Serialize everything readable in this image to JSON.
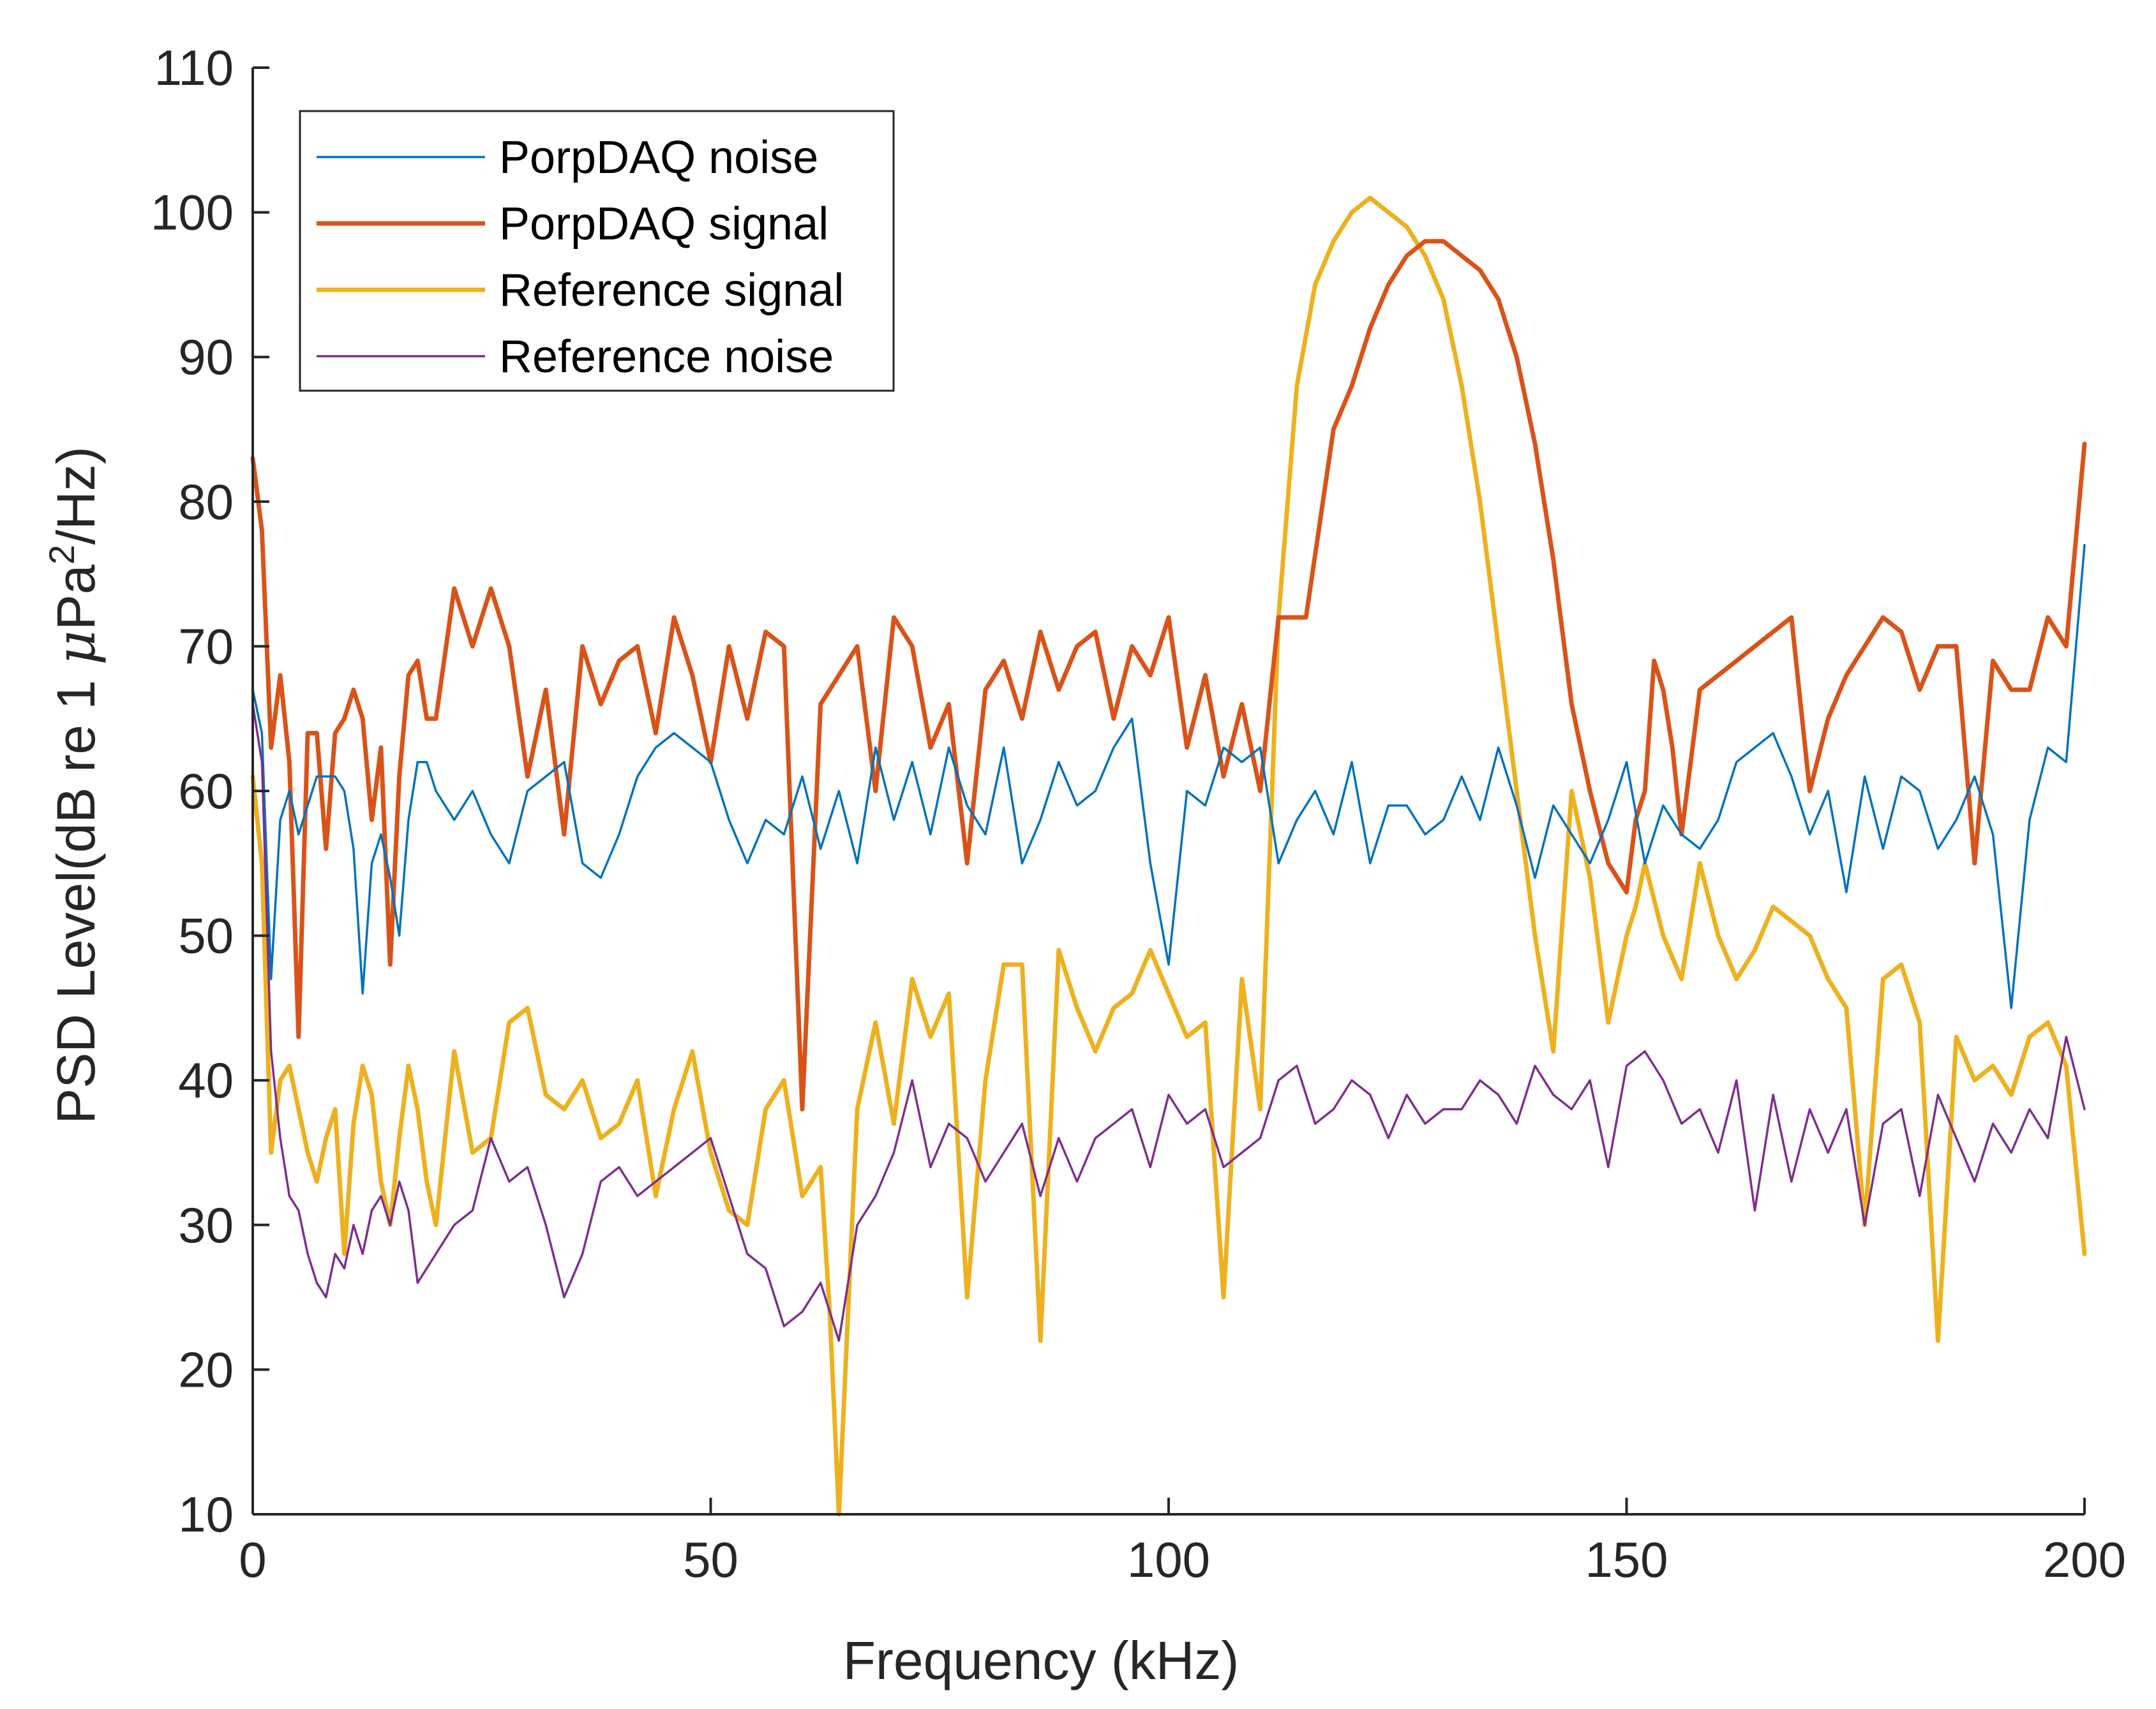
{
  "chart_data": {
    "type": "line",
    "title": "",
    "xlabel": "Frequency (kHz)",
    "ylabel_main": "PSD Level(dB re 1 ",
    "ylabel_mu": "μ",
    "ylabel_pa": "Pa",
    "ylabel_sup": "2",
    "ylabel_end": "/Hz)",
    "xlim": [
      0,
      200
    ],
    "ylim": [
      10,
      110
    ],
    "xticks": [
      0,
      50,
      100,
      150,
      200
    ],
    "xtick_labels": [
      "0",
      "50",
      "100",
      "150",
      "200"
    ],
    "yticks": [
      10,
      20,
      30,
      40,
      50,
      60,
      70,
      80,
      90,
      100,
      110
    ],
    "ytick_labels": [
      "10",
      "20",
      "30",
      "40",
      "50",
      "60",
      "70",
      "80",
      "90",
      "100",
      "110"
    ],
    "grid": false,
    "legend_position": "top-left",
    "series": [
      {
        "name": "PorpDAQ noise",
        "color": "#0072BD",
        "width": "thin",
        "x": [
          0,
          1,
          2,
          3,
          4,
          5,
          6,
          7,
          8,
          9,
          10,
          11,
          12,
          13,
          14,
          15,
          16,
          17,
          18,
          19,
          20,
          22,
          24,
          26,
          28,
          30,
          32,
          34,
          36,
          38,
          40,
          42,
          44,
          46,
          48,
          50,
          52,
          54,
          56,
          58,
          60,
          62,
          64,
          66,
          68,
          70,
          72,
          74,
          76,
          78,
          80,
          82,
          84,
          86,
          88,
          90,
          92,
          94,
          96,
          98,
          100,
          102,
          104,
          106,
          108,
          110,
          112,
          114,
          116,
          118,
          120,
          122,
          124,
          126,
          128,
          130,
          132,
          134,
          136,
          138,
          140,
          142,
          144,
          146,
          148,
          150,
          152,
          154,
          156,
          158,
          160,
          162,
          164,
          166,
          168,
          170,
          172,
          174,
          176,
          178,
          180,
          182,
          184,
          186,
          188,
          190,
          192,
          194,
          196,
          198,
          200
        ],
        "y": [
          67,
          64,
          47,
          58,
          60,
          57,
          59,
          61,
          61,
          61,
          60,
          56,
          46,
          55,
          57,
          54,
          50,
          58,
          62,
          62,
          60,
          58,
          60,
          57,
          55,
          60,
          61,
          62,
          55,
          54,
          57,
          61,
          63,
          64,
          63,
          62,
          58,
          55,
          58,
          57,
          61,
          56,
          60,
          55,
          63,
          58,
          62,
          57,
          63,
          59,
          57,
          63,
          55,
          58,
          62,
          59,
          60,
          63,
          65,
          55,
          48,
          60,
          59,
          63,
          62,
          63,
          55,
          58,
          60,
          57,
          62,
          55,
          59,
          59,
          57,
          58,
          61,
          58,
          63,
          59,
          54,
          59,
          57,
          55,
          58,
          62,
          55,
          59,
          57,
          56,
          58,
          62,
          63,
          64,
          61,
          57,
          60,
          53,
          61,
          56,
          61,
          60,
          56,
          58,
          61,
          57,
          45,
          58,
          63,
          62,
          77
        ]
      },
      {
        "name": "PorpDAQ signal",
        "color": "#D95319",
        "width": "thick",
        "x": [
          0,
          1,
          2,
          3,
          4,
          5,
          6,
          7,
          8,
          9,
          10,
          11,
          12,
          13,
          14,
          15,
          16,
          17,
          18,
          19,
          20,
          22,
          24,
          26,
          28,
          30,
          32,
          34,
          36,
          38,
          40,
          42,
          44,
          46,
          48,
          50,
          52,
          54,
          56,
          58,
          60,
          62,
          64,
          66,
          68,
          70,
          72,
          74,
          76,
          78,
          80,
          82,
          84,
          86,
          88,
          90,
          92,
          94,
          96,
          98,
          100,
          102,
          104,
          106,
          108,
          110,
          112,
          115,
          118,
          120,
          122,
          124,
          126,
          128,
          130,
          132,
          134,
          136,
          138,
          140,
          142,
          144,
          146,
          148,
          150,
          151,
          152,
          153,
          154,
          155,
          156,
          158,
          160,
          162,
          164,
          166,
          168,
          170,
          172,
          174,
          176,
          178,
          180,
          182,
          184,
          186,
          188,
          190,
          192,
          194,
          196,
          198,
          200
        ],
        "y": [
          83,
          78,
          63,
          68,
          62,
          43,
          64,
          64,
          56,
          64,
          65,
          67,
          65,
          58,
          63,
          48,
          61,
          68,
          69,
          65,
          65,
          74,
          70,
          74,
          70,
          61,
          67,
          57,
          70,
          66,
          69,
          70,
          64,
          72,
          68,
          62,
          70,
          65,
          71,
          70,
          38,
          66,
          68,
          70,
          60,
          72,
          70,
          63,
          66,
          55,
          67,
          69,
          65,
          71,
          67,
          70,
          71,
          65,
          70,
          68,
          72,
          63,
          68,
          61,
          66,
          60,
          72,
          72,
          85,
          88,
          92,
          95,
          97,
          98,
          98,
          97,
          96,
          94,
          90,
          84,
          76,
          66,
          60,
          55,
          53,
          58,
          60,
          69,
          67,
          63,
          57,
          67,
          68,
          69,
          70,
          71,
          72,
          60,
          65,
          68,
          70,
          72,
          71,
          67,
          70,
          70,
          55,
          69,
          67,
          67,
          72,
          70,
          84
        ]
      },
      {
        "name": "Reference signal",
        "color": "#EDB120",
        "width": "thick",
        "x": [
          0,
          1,
          2,
          3,
          4,
          5,
          6,
          7,
          8,
          9,
          10,
          11,
          12,
          13,
          14,
          15,
          16,
          17,
          18,
          19,
          20,
          22,
          24,
          26,
          28,
          30,
          32,
          34,
          36,
          38,
          40,
          42,
          44,
          46,
          48,
          50,
          52,
          54,
          56,
          58,
          60,
          62,
          63,
          64,
          66,
          68,
          70,
          72,
          74,
          76,
          78,
          80,
          82,
          84,
          86,
          88,
          90,
          92,
          94,
          96,
          98,
          100,
          102,
          104,
          106,
          108,
          110,
          112,
          114,
          116,
          118,
          120,
          122,
          124,
          126,
          128,
          130,
          132,
          134,
          136,
          138,
          140,
          142,
          144,
          146,
          148,
          150,
          151,
          152,
          154,
          156,
          158,
          160,
          162,
          164,
          166,
          168,
          170,
          172,
          174,
          176,
          178,
          180,
          182,
          184,
          186,
          188,
          190,
          192,
          194,
          196,
          198,
          200
        ],
        "y": [
          61,
          55,
          35,
          40,
          41,
          38,
          35,
          33,
          36,
          38,
          28,
          37,
          41,
          39,
          33,
          30,
          36,
          41,
          38,
          33,
          30,
          42,
          35,
          36,
          44,
          45,
          39,
          38,
          40,
          36,
          37,
          40,
          32,
          38,
          42,
          35,
          31,
          30,
          38,
          40,
          32,
          34,
          24,
          10,
          38,
          44,
          37,
          47,
          43,
          46,
          25,
          40,
          48,
          48,
          22,
          49,
          45,
          42,
          45,
          46,
          49,
          46,
          43,
          44,
          25,
          47,
          38,
          72,
          88,
          95,
          98,
          100,
          101,
          100,
          99,
          97,
          94,
          88,
          80,
          70,
          60,
          50,
          42,
          60,
          54,
          44,
          50,
          52,
          55,
          50,
          47,
          55,
          50,
          47,
          49,
          52,
          51,
          50,
          47,
          45,
          30,
          47,
          48,
          44,
          22,
          43,
          40,
          41,
          39,
          43,
          44,
          41,
          28
        ]
      },
      {
        "name": "Reference noise",
        "color": "#7E2F8E",
        "width": "thin",
        "x": [
          0,
          1,
          2,
          3,
          4,
          5,
          6,
          7,
          8,
          9,
          10,
          11,
          12,
          13,
          14,
          15,
          16,
          17,
          18,
          19,
          20,
          22,
          24,
          26,
          28,
          30,
          32,
          34,
          36,
          38,
          40,
          42,
          44,
          46,
          48,
          50,
          52,
          54,
          56,
          58,
          60,
          62,
          64,
          66,
          68,
          70,
          72,
          74,
          76,
          78,
          80,
          82,
          84,
          86,
          88,
          90,
          92,
          94,
          96,
          98,
          100,
          102,
          104,
          106,
          108,
          110,
          112,
          114,
          116,
          118,
          120,
          122,
          124,
          126,
          128,
          130,
          132,
          134,
          136,
          138,
          140,
          142,
          144,
          146,
          148,
          150,
          152,
          154,
          156,
          158,
          160,
          162,
          164,
          166,
          168,
          170,
          172,
          174,
          176,
          178,
          180,
          182,
          184,
          186,
          188,
          190,
          192,
          194,
          196,
          198,
          200
        ],
        "y": [
          66,
          62,
          42,
          36,
          32,
          31,
          28,
          26,
          25,
          28,
          27,
          30,
          28,
          31,
          32,
          30,
          33,
          31,
          26,
          27,
          28,
          30,
          31,
          36,
          33,
          34,
          30,
          25,
          28,
          33,
          34,
          32,
          33,
          34,
          35,
          36,
          32,
          28,
          27,
          23,
          24,
          26,
          22,
          30,
          32,
          35,
          40,
          34,
          37,
          36,
          33,
          35,
          37,
          32,
          36,
          33,
          36,
          37,
          38,
          34,
          39,
          37,
          38,
          34,
          35,
          36,
          40,
          41,
          37,
          38,
          40,
          39,
          36,
          39,
          37,
          38,
          38,
          40,
          39,
          37,
          41,
          39,
          38,
          40,
          34,
          41,
          42,
          40,
          37,
          38,
          35,
          40,
          31,
          39,
          33,
          38,
          35,
          38,
          30,
          37,
          38,
          32,
          39,
          36,
          33,
          37,
          35,
          38,
          36,
          43,
          38
        ]
      }
    ]
  }
}
